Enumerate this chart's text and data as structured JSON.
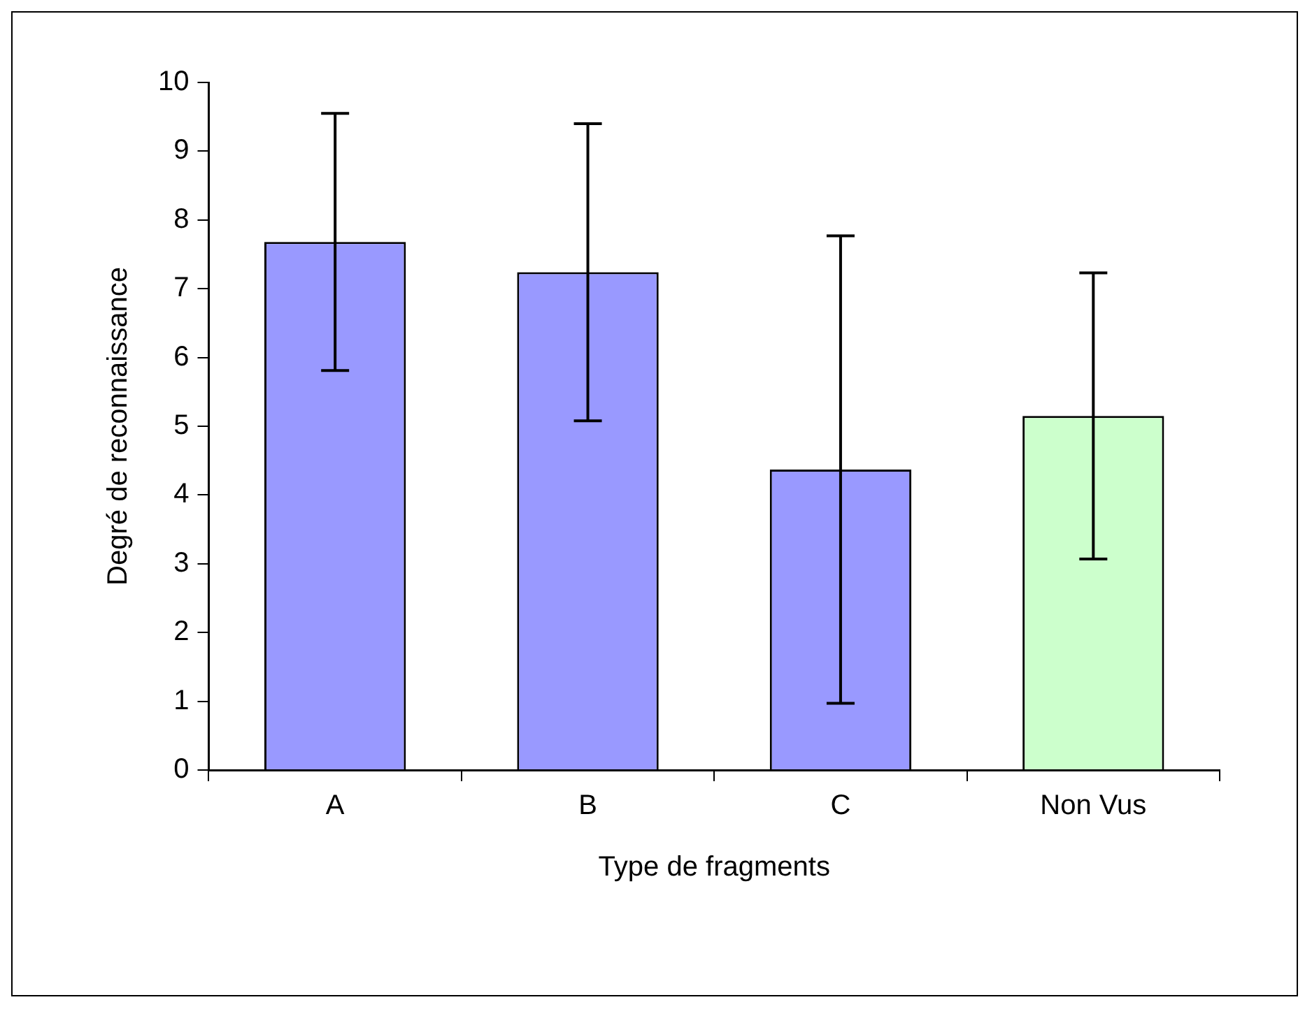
{
  "chart_data": {
    "type": "bar",
    "xlabel": "Type de fragments",
    "ylabel": "Degré de reconnaissance",
    "categories": [
      "A",
      "B",
      "C",
      "Non Vus"
    ],
    "values": [
      7.68,
      7.24,
      4.37,
      5.15
    ],
    "colors": [
      "#9999ff",
      "#9999ff",
      "#9999ff",
      "#ccffcc"
    ],
    "errors": [
      1.87,
      2.16,
      3.4,
      2.08
    ],
    "ylim": [
      0,
      10
    ],
    "yticks": [
      0,
      1,
      2,
      3,
      4,
      5,
      6,
      7,
      8,
      9,
      10
    ],
    "grid": false,
    "legend": false
  }
}
